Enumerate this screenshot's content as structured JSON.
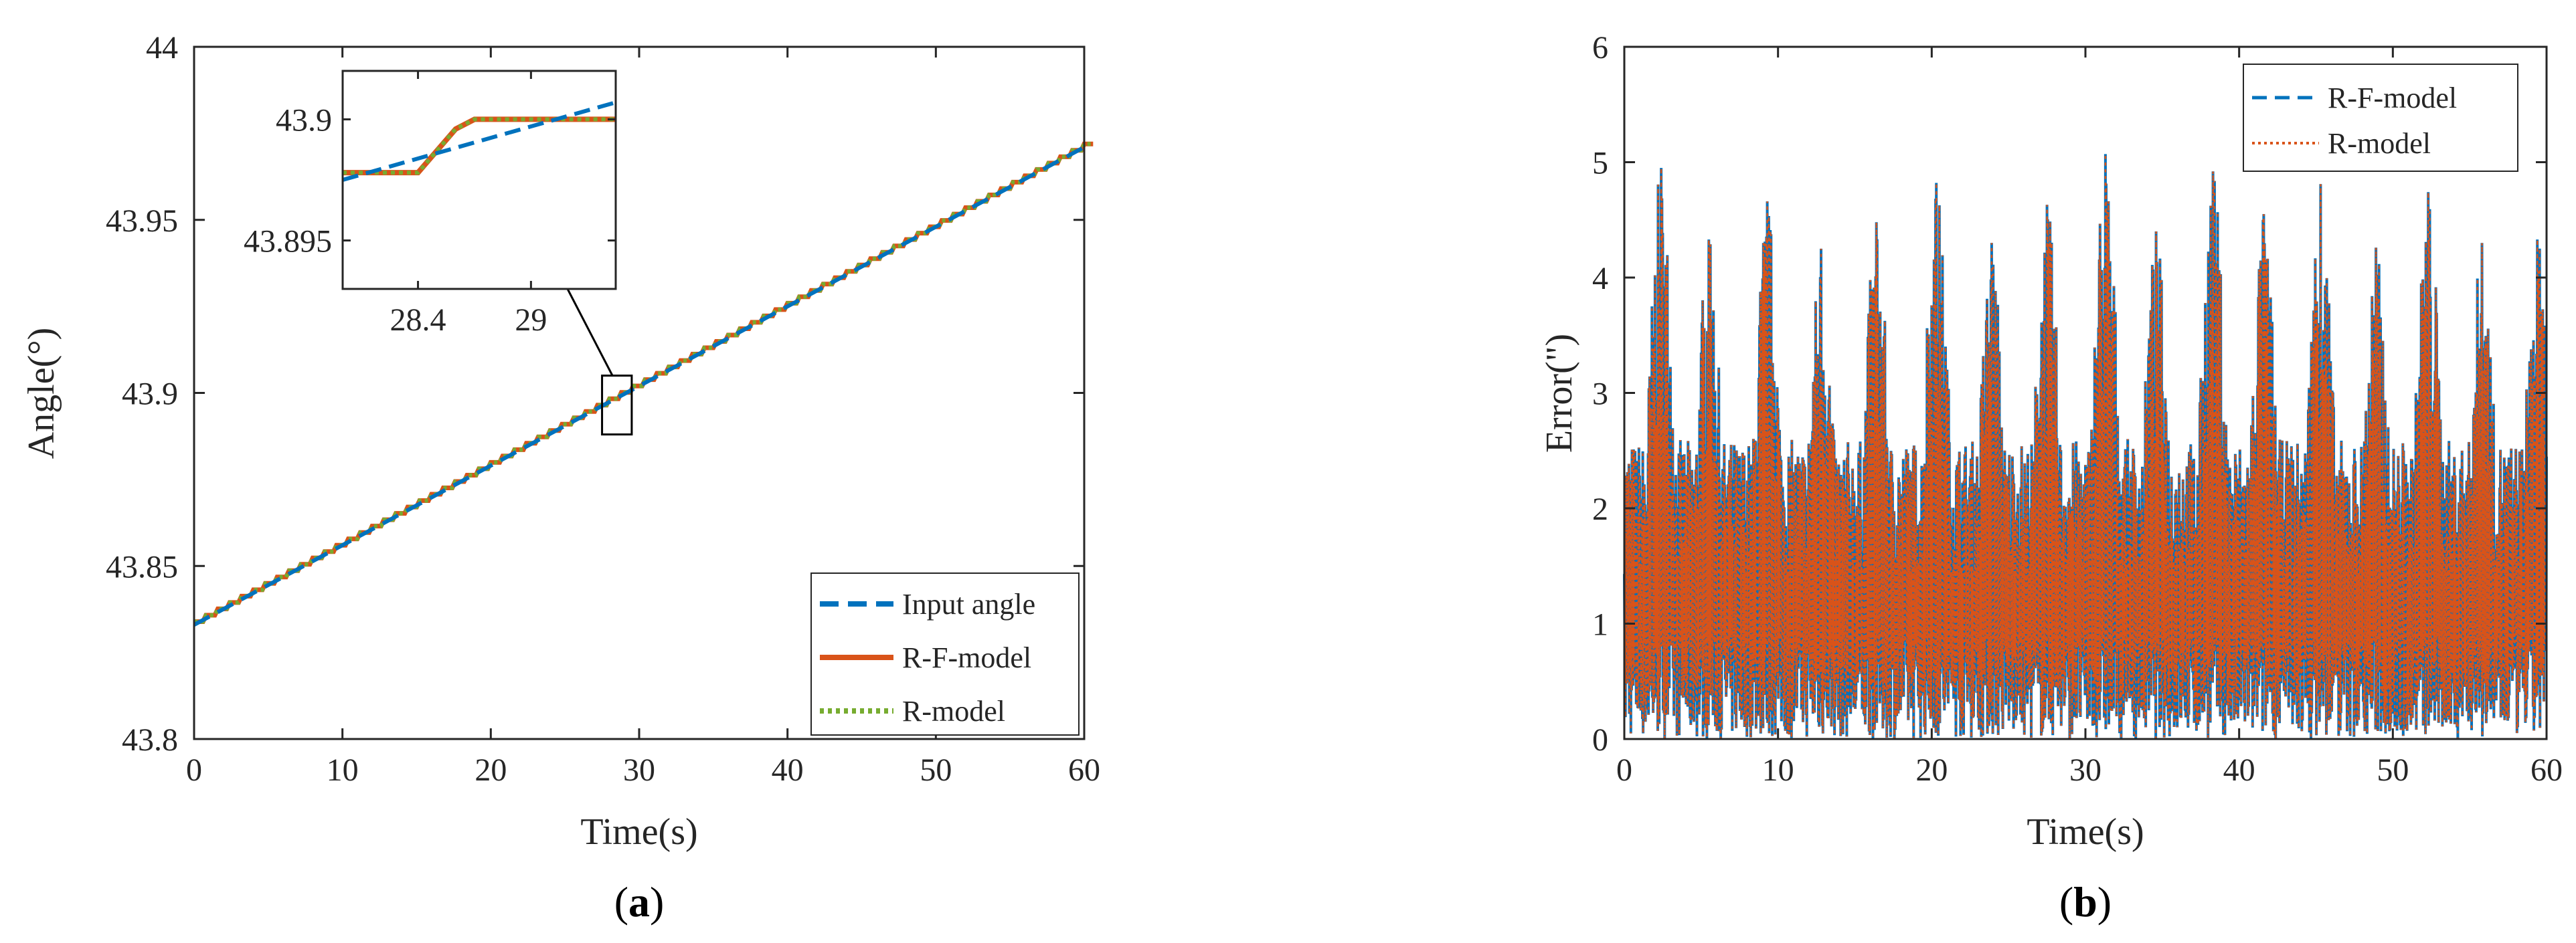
{
  "chart_data": [
    {
      "id": "a",
      "type": "line",
      "caption_letter": "a",
      "xlabel": "Time(s)",
      "ylabel": "Angle(°)",
      "xlim": [
        0,
        60
      ],
      "ylim": [
        43.8,
        44.0
      ],
      "xticks": [
        0,
        10,
        20,
        30,
        40,
        50,
        60
      ],
      "xtick_labels": [
        "0",
        "10",
        "20",
        "30",
        "40",
        "50",
        "60"
      ],
      "yticks": [
        43.8,
        43.85,
        43.9,
        43.95,
        44.0
      ],
      "ytick_labels": [
        "43.8",
        "43.85",
        "43.9",
        "43.95",
        "44"
      ],
      "legend_position": "bottom-right",
      "series": [
        {
          "name": "Input angle",
          "color": "#0072BD",
          "style": "dashed",
          "x": [
            0,
            60
          ],
          "y": [
            43.833,
            43.971
          ]
        },
        {
          "name": "R-F-model",
          "color": "#D95319",
          "style": "solid",
          "x": [
            0,
            60
          ],
          "y": [
            43.833,
            43.971
          ]
        },
        {
          "name": "R-model",
          "color": "#77AC30",
          "style": "dotted",
          "x": [
            0,
            60
          ],
          "y": [
            43.833,
            43.971
          ]
        }
      ],
      "zoom_box": {
        "x": [
          27.5,
          29.5
        ],
        "y": [
          43.888,
          43.905
        ]
      },
      "inset": {
        "xlim": [
          28.0,
          29.45
        ],
        "ylim": [
          43.893,
          43.902
        ],
        "xticks": [
          28.4,
          29
        ],
        "xtick_labels": [
          "28.4",
          "29"
        ],
        "yticks": [
          43.895,
          43.9
        ],
        "ytick_labels": [
          "43.895",
          "43.9"
        ],
        "input_angle": {
          "x": [
            28.0,
            29.45
          ],
          "y": [
            43.8975,
            43.9007
          ]
        },
        "model_step": {
          "x": [
            28.0,
            28.4,
            28.6,
            28.7,
            29.45
          ],
          "y": [
            43.8978,
            43.8978,
            43.8996,
            43.9,
            43.9
          ]
        }
      }
    },
    {
      "id": "b",
      "type": "line",
      "caption_letter": "b",
      "xlabel": "Time(s)",
      "ylabel": "Error(\")",
      "xlim": [
        0,
        60
      ],
      "ylim": [
        0,
        6
      ],
      "xticks": [
        0,
        10,
        20,
        30,
        40,
        50,
        60
      ],
      "xtick_labels": [
        "0",
        "10",
        "20",
        "30",
        "40",
        "50",
        "60"
      ],
      "yticks": [
        0,
        1,
        2,
        3,
        4,
        5,
        6
      ],
      "ytick_labels": [
        "0",
        "1",
        "2",
        "3",
        "4",
        "5",
        "6"
      ],
      "legend_position": "top-right",
      "series": [
        {
          "name": "R-F-model",
          "color": "#0072BD",
          "style": "dashed"
        },
        {
          "name": "R-model",
          "color": "#D95319",
          "style": "dotted"
        }
      ],
      "peaks": [
        {
          "x": 2.4,
          "y": 4.95
        },
        {
          "x": 5.5,
          "y": 4.33
        },
        {
          "x": 9.3,
          "y": 4.66
        },
        {
          "x": 12.8,
          "y": 4.25
        },
        {
          "x": 16.4,
          "y": 4.48
        },
        {
          "x": 20.3,
          "y": 4.82
        },
        {
          "x": 23.9,
          "y": 4.3
        },
        {
          "x": 27.5,
          "y": 4.63
        },
        {
          "x": 31.3,
          "y": 5.07
        },
        {
          "x": 34.6,
          "y": 4.4
        },
        {
          "x": 38.3,
          "y": 4.92
        },
        {
          "x": 41.6,
          "y": 4.55
        },
        {
          "x": 45.3,
          "y": 4.81
        },
        {
          "x": 48.9,
          "y": 4.26
        },
        {
          "x": 52.3,
          "y": 4.74
        },
        {
          "x": 55.8,
          "y": 4.3
        },
        {
          "x": 59.4,
          "y": 4.33
        }
      ],
      "min_error": 0,
      "max_error": 5.07
    }
  ]
}
